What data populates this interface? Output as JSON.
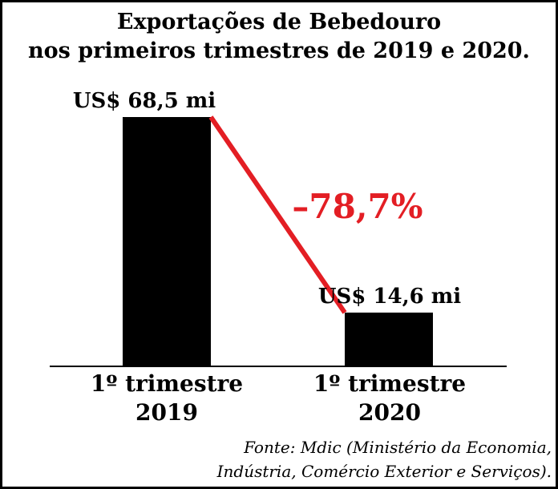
{
  "chart_data": {
    "type": "bar",
    "title": [
      "Exportações de Bebedouro",
      "nos primeiros trimestres de 2019 e 2020."
    ],
    "categories": [
      [
        "1º trimestre",
        "2019"
      ],
      [
        "1º trimestre",
        "2020"
      ]
    ],
    "values": [
      68.5,
      14.6
    ],
    "data_labels": [
      "US$ 68,5 mi",
      "US$ 14,6 mi"
    ],
    "unit": "US$ milhões",
    "change_label": "–78,7%",
    "colors": {
      "bar": "#000000",
      "change_line": "#e31e24",
      "change_text": "#e31e24"
    },
    "source": [
      "Fonte: Mdic (Ministério da Economia,",
      "Indústria, Comércio Exterior e Serviços)."
    ]
  }
}
